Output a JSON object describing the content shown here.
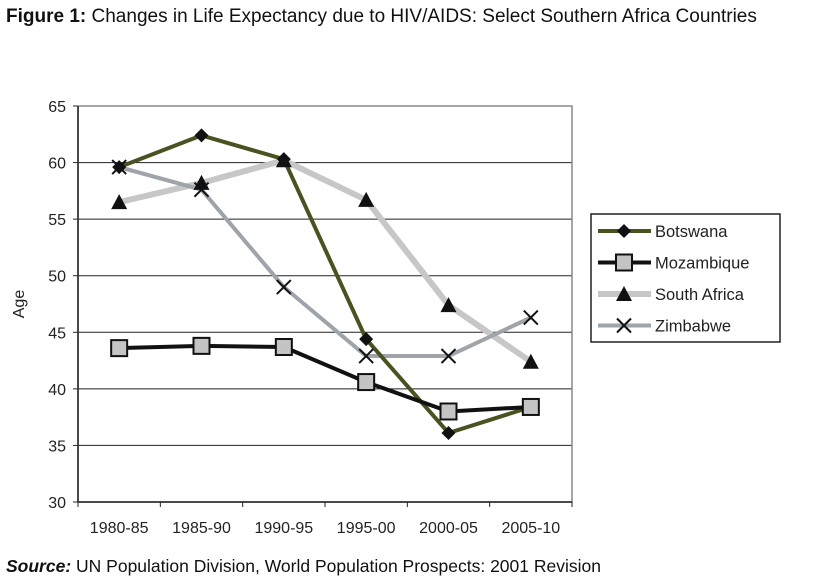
{
  "header": {
    "figure_label": "Figure 1:",
    "title": "Changes in Life Expectancy due to HIV/AIDS: Select Southern Africa Countries"
  },
  "footer": {
    "source_label": "Source:",
    "source_text": "UN Population Division, World Population Prospects: 2001 Revision"
  },
  "chart_data": {
    "type": "line",
    "title": "Changes in Life Expectancy due to HIV/AIDS: Select Southern Africa Countries",
    "xlabel": "",
    "ylabel": "Age",
    "categories": [
      "1980-85",
      "1985-90",
      "1990-95",
      "1995-00",
      "2000-05",
      "2005-10"
    ],
    "ylim": [
      30,
      65
    ],
    "yticks": [
      30,
      35,
      40,
      45,
      50,
      55,
      60,
      65
    ],
    "grid": true,
    "legend_position": "right",
    "series": [
      {
        "name": "Botswana",
        "values": [
          59.6,
          62.4,
          60.3,
          44.4,
          36.1,
          38.4
        ],
        "color": "#4a5221",
        "marker": "diamond",
        "marker_fill": "#111111"
      },
      {
        "name": "Mozambique",
        "values": [
          43.6,
          43.8,
          43.7,
          40.6,
          38.0,
          38.4
        ],
        "color": "#111111",
        "marker": "square",
        "marker_fill": "#c4c4c4"
      },
      {
        "name": "South Africa",
        "values": [
          56.5,
          58.2,
          60.2,
          56.7,
          47.4,
          42.4
        ],
        "color": "#c7c7c7",
        "marker": "triangle",
        "marker_fill": "#111111"
      },
      {
        "name": "Zimbabwe",
        "values": [
          59.6,
          57.6,
          49.0,
          42.9,
          42.9,
          46.3
        ],
        "color": "#9ea4aa",
        "marker": "x",
        "marker_fill": "#111111"
      }
    ]
  }
}
